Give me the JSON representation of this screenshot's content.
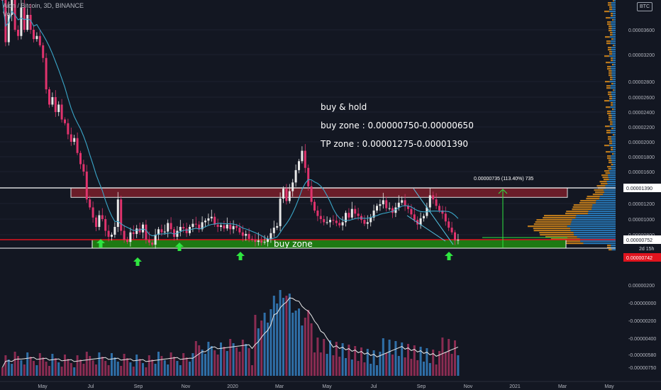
{
  "header": {
    "symbol_line": "Aion / Bitcoin, 3D, BINANCE",
    "indicator_line": "Vol",
    "currency_badge": "BTC"
  },
  "annotations": {
    "title": "buy & hold",
    "buy_zone": "buy zone : 0.00000750-0.00000650",
    "tp_zone": "TP zone :  0.00001275-0.00001390",
    "zone_label": "buy zone",
    "measure_label": "0.00000735 (113.40%) 735"
  },
  "colors": {
    "background": "#131722",
    "up_candle": "#e8e8e8",
    "down_candle": "#e0336d",
    "ma_line": "#3aa6c8",
    "tp_zone_fill": "#7a1f2b",
    "buy_zone_fill": "#1e7a12",
    "arrow": "#2fe640",
    "price_label_red": "#e0141e",
    "volume_up": "#2f6fa8",
    "volume_down": "#8a2c52",
    "profile_orange": "#d88a1a",
    "profile_blue": "#2a82c8"
  },
  "chart_data": {
    "type": "candlestick",
    "pair": "Aion / Bitcoin",
    "timeframe": "3D",
    "exchange": "BINANCE",
    "x_tick_labels": [
      "May",
      "Jul",
      "Sep",
      "Nov",
      "2020",
      "Mar",
      "May",
      "Jul",
      "Sep",
      "Nov",
      "2021",
      "Mar",
      "May"
    ],
    "price_axis": {
      "tick_labels": [
        "0.00003600",
        "0.00003200",
        "0.00002800",
        "0.00002600",
        "0.00002400",
        "0.00002200",
        "0.00002000",
        "0.00001800",
        "0.00001600",
        "0.00001200",
        "0.00001000",
        "0.00000800"
      ],
      "tick_values": [
        3.6e-05,
        3.2e-05,
        2.8e-05,
        2.6e-05,
        2.4e-05,
        2.2e-05,
        2e-05,
        1.8e-05,
        1.6e-05,
        1.2e-05,
        1e-05,
        8e-06
      ],
      "current_price_label": "0.00000752",
      "current_price": 7.52e-06,
      "countdown_label": "2d 15h",
      "low_price_label": "0.00000742",
      "low_price": 7.42e-06,
      "tp_level_label": "0.00001390",
      "tp_level": 1.39e-05
    },
    "zones": {
      "tp_zone": [
        1.275e-05,
        1.39e-05
      ],
      "buy_zone": [
        6.5e-06,
        7.5e-06
      ]
    },
    "volume_axis": {
      "tick_labels": [
        "0.00000200",
        "-0.00000000",
        "-0.00000200",
        "-0.00000400",
        "-0.00000580",
        "-0.00000750"
      ]
    },
    "candles_close": [
      38.5,
      34,
      37,
      39.5,
      36,
      35,
      37.5,
      36,
      37,
      36,
      34.5,
      35,
      33.5,
      31.5,
      27,
      25,
      26,
      24,
      25,
      23,
      22.5,
      21,
      20,
      20.5,
      18.5,
      17,
      16,
      12.5,
      11.5,
      10.2,
      9,
      10.5,
      10,
      8.5,
      7.8,
      8,
      9,
      12.5,
      8.5,
      7.5,
      7.2,
      8.3,
      8.1,
      8.8,
      8.3,
      9.3,
      7.5,
      7.1,
      6.8,
      8,
      8.7,
      8.3,
      8.4,
      9.5,
      8.7,
      7.8,
      8.5,
      9,
      8.8,
      8.2,
      9,
      9.4,
      9.3,
      8.7,
      9.6,
      9.8,
      10.1,
      10.3,
      9.3,
      9,
      9.2,
      8.8,
      9.3,
      8.7,
      9.1,
      8.9,
      8.3,
      7.9,
      8.1,
      7.6,
      7.5,
      7.2,
      7.4,
      7.1,
      7.2,
      7.6,
      8.2,
      8.9,
      9.1,
      12.6,
      13.8,
      12.3,
      13.5,
      14.6,
      16.2,
      17.4,
      18.8,
      16.5,
      14.1,
      12.2,
      11.1,
      10.4,
      10,
      9.6,
      9.6,
      9.9,
      9.8,
      9.5,
      9.2,
      9.6,
      10.8,
      10.2,
      11.3,
      10.7,
      10.4,
      9.9,
      9.4,
      9.6,
      10.2,
      11.1,
      11.7,
      11.9,
      12.4,
      11.4,
      11.4,
      10.8,
      11.5,
      12.1,
      12.4,
      11.7,
      11.3,
      10.6,
      9.9,
      9.3,
      10.1,
      10.4,
      11.5,
      13,
      12.5,
      11.7,
      11.1,
      10.7,
      9.7,
      8.9,
      8.3,
      7.4,
      7.5
    ],
    "candles_start": "2019-03-29",
    "ma_visible": true,
    "volume_visible": true,
    "volume_profile_visible": true
  }
}
